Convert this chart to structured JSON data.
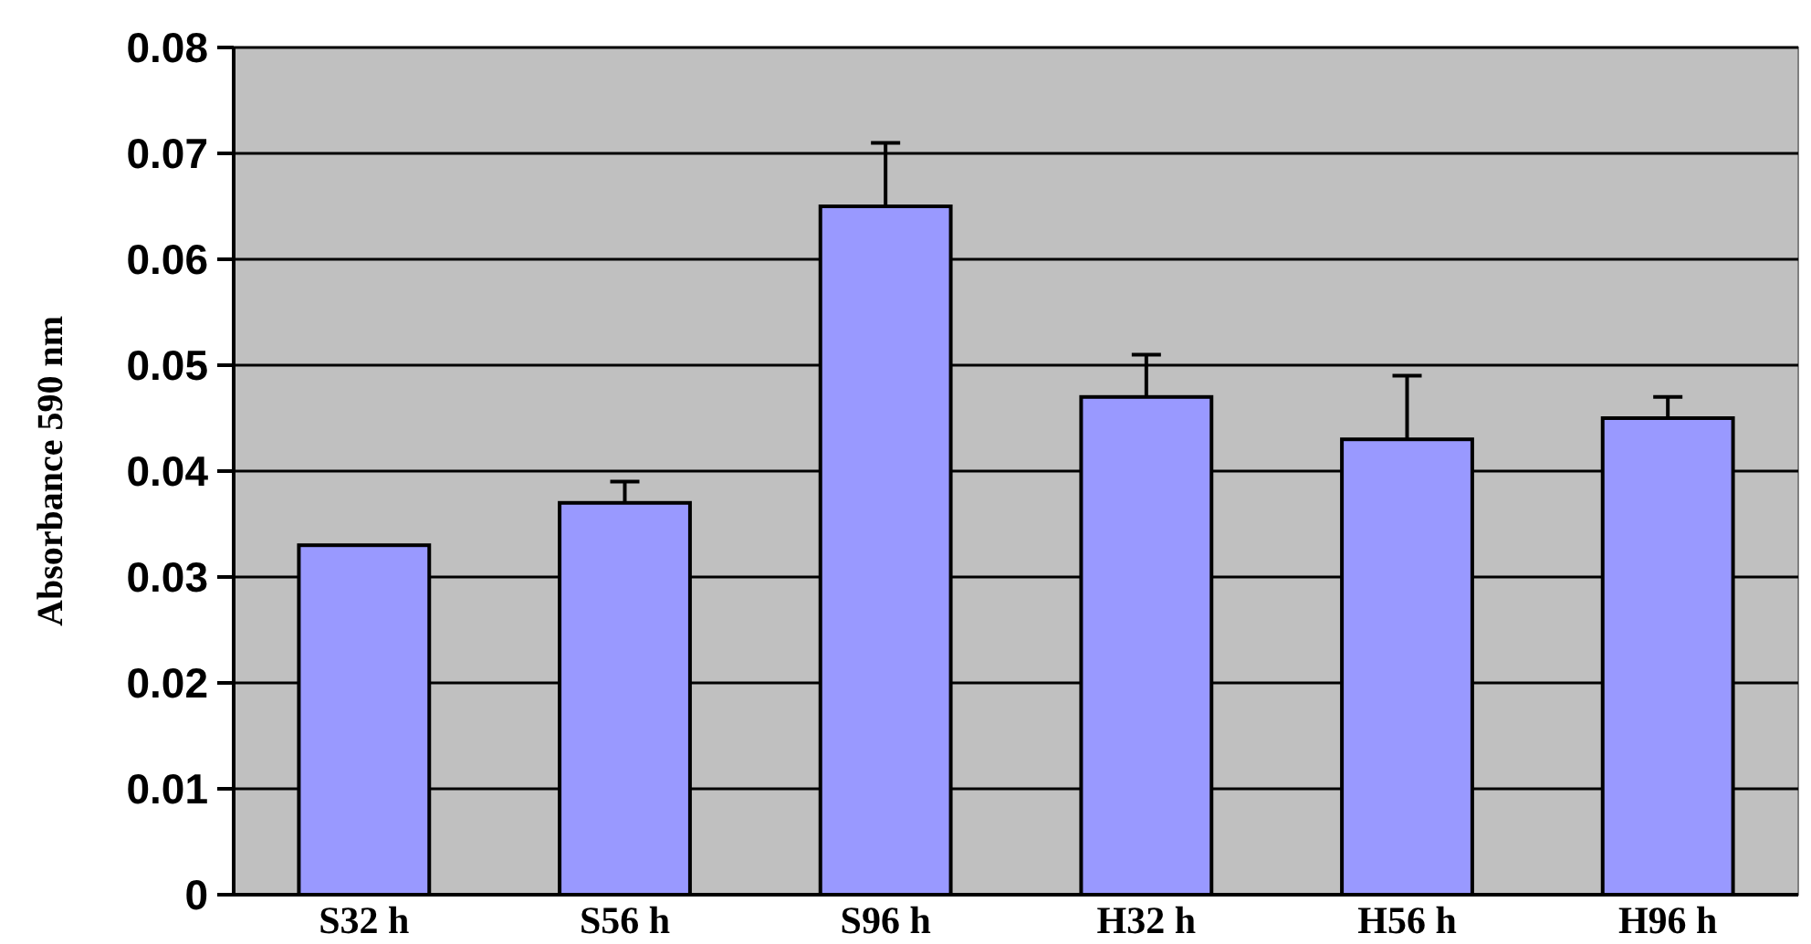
{
  "chart_data": {
    "type": "bar",
    "ylabel": "Absorbance 590 nm",
    "categories": [
      "S32 h",
      "S56 h",
      "S96 h",
      "H32 h",
      "H56 h",
      "H96 h"
    ],
    "values": [
      0.033,
      0.037,
      0.065,
      0.047,
      0.043,
      0.045
    ],
    "errors": [
      null,
      [
        0.037,
        0.039
      ],
      [
        0.065,
        0.071
      ],
      [
        0.047,
        0.051
      ],
      [
        0.043,
        0.049
      ],
      [
        0.045,
        0.047
      ]
    ],
    "color": "#9999ff",
    "ylim": [
      0,
      0.08
    ],
    "yticks": [
      0,
      0.01,
      0.02,
      0.03,
      0.04,
      0.05,
      0.06,
      0.07,
      0.08
    ],
    "grid": "y"
  }
}
